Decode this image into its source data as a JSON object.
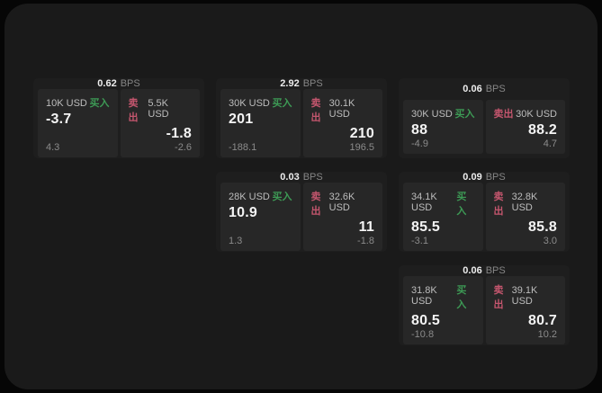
{
  "page": {
    "outer_bg": "#060606",
    "panel_bg": "#1a1a1a",
    "card_bg": "#1e1e1e",
    "section_bg": "#272727",
    "accent_green": "#3d9a55",
    "accent_red": "#c4566e",
    "text_primary": "#f4f4f4",
    "text_secondary": "#bdbdbd",
    "text_muted": "#8b8b8b"
  },
  "labels": {
    "bps_suffix": "BPS",
    "buy": "买入",
    "sell": "卖出"
  },
  "cards": [
    {
      "row": 1,
      "col": 1,
      "bps": "0.62",
      "buy": {
        "amount": "10K USD",
        "value": "-3.7",
        "delta": "4.3"
      },
      "sell": {
        "amount": "5.5K USD",
        "value": "-1.8",
        "delta": "-2.6"
      }
    },
    {
      "row": 1,
      "col": 2,
      "bps": "2.92",
      "buy": {
        "amount": "30K USD",
        "value": "201",
        "delta": "-188.1"
      },
      "sell": {
        "amount": "30.1K USD",
        "value": "210",
        "delta": "196.5"
      }
    },
    {
      "row": 1,
      "col": 3,
      "bps": "0.06",
      "buy": {
        "amount": "30K USD",
        "value": "88",
        "delta": "-4.9"
      },
      "sell": {
        "amount": "30K USD",
        "value": "88.2",
        "delta": "4.7"
      }
    },
    {
      "row": 2,
      "col": 2,
      "bps": "0.03",
      "buy": {
        "amount": "28K USD",
        "value": "10.9",
        "delta": "1.3"
      },
      "sell": {
        "amount": "32.6K USD",
        "value": "11",
        "delta": "-1.8"
      }
    },
    {
      "row": 2,
      "col": 3,
      "bps": "0.09",
      "buy": {
        "amount": "34.1K USD",
        "value": "85.5",
        "delta": "-3.1"
      },
      "sell": {
        "amount": "32.8K USD",
        "value": "85.8",
        "delta": "3.0"
      }
    },
    {
      "row": 3,
      "col": 3,
      "bps": "0.06",
      "buy": {
        "amount": "31.8K USD",
        "value": "80.5",
        "delta": "-10.8"
      },
      "sell": {
        "amount": "39.1K USD",
        "value": "80.7",
        "delta": "10.2"
      }
    }
  ]
}
